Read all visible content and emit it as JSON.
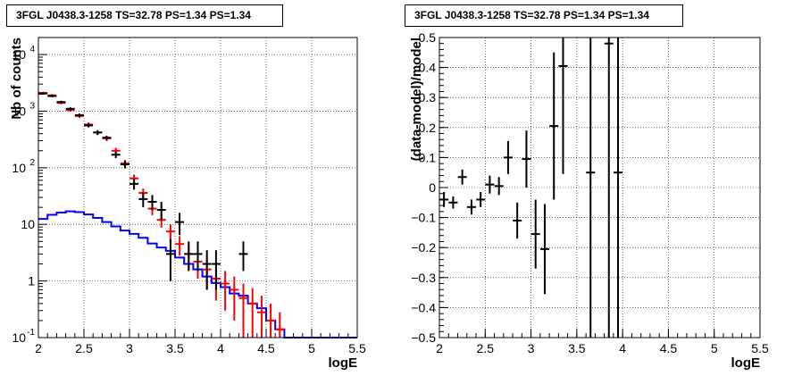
{
  "chart_data": [
    {
      "type": "line",
      "title": "3FGL J0438.3-1258 TS=32.78 PS=1.34 PS=1.34",
      "xlabel": "logE",
      "ylabel": "Nb of counts",
      "xlim": [
        2,
        5.5
      ],
      "ylim": [
        0.1,
        20000
      ],
      "yscale": "log",
      "grid": true,
      "xticks": [
        "2",
        "2.5",
        "3",
        "3.5",
        "4",
        "4.5",
        "5",
        "5.5"
      ],
      "yticks": [
        {
          "v": 0.1,
          "label": "10",
          "exp": "-1"
        },
        {
          "v": 1,
          "label": "1",
          "exp": ""
        },
        {
          "v": 10,
          "label": "10",
          "exp": ""
        },
        {
          "v": 100,
          "label": "10",
          "exp": "2"
        },
        {
          "v": 1000,
          "label": "10",
          "exp": "3"
        },
        {
          "v": 10000,
          "label": "10",
          "exp": "4"
        }
      ],
      "series": [
        {
          "style": "step",
          "color": "#0000ff",
          "x": [
            2.0,
            2.1,
            2.2,
            2.3,
            2.4,
            2.5,
            2.6,
            2.7,
            2.8,
            2.9,
            3.0,
            3.1,
            3.2,
            3.3,
            3.4,
            3.5,
            3.6,
            3.7,
            3.8,
            3.9,
            4.0,
            4.1,
            4.2,
            4.3,
            4.4,
            4.5,
            4.6,
            4.7,
            4.8,
            4.9,
            5.0,
            5.1,
            5.2,
            5.3,
            5.4
          ],
          "values": [
            12.5,
            14.8,
            16.2,
            17.0,
            16.5,
            15.0,
            13.0,
            11.0,
            9.2,
            7.8,
            6.8,
            5.8,
            4.6,
            3.9,
            3.4,
            2.6,
            2.0,
            1.6,
            1.2,
            0.92,
            0.78,
            0.6,
            0.55,
            0.4,
            0.33,
            0.2,
            0.14,
            0.1,
            0.1,
            0.1,
            0.1,
            0.1,
            0.1,
            0.1,
            0.1
          ]
        },
        {
          "style": "errorbar",
          "color": "#ff0000",
          "x": [
            2.05,
            2.15,
            2.25,
            2.35,
            2.45,
            2.55,
            2.65,
            2.75,
            2.85,
            2.95,
            3.05,
            3.15,
            3.25,
            3.35,
            3.45,
            3.55,
            3.65,
            3.75,
            3.85,
            3.95,
            4.05,
            4.15,
            4.25,
            4.35,
            4.45,
            4.55,
            4.65
          ],
          "values": [
            2100,
            1900,
            1400,
            1050,
            820,
            580,
            420,
            330,
            200,
            120,
            65,
            36,
            19,
            12,
            7.5,
            4.5,
            3.0,
            2.2,
            1.6,
            1.1,
            0.9,
            0.7,
            0.5,
            0.4,
            0.28,
            0.2,
            0.14
          ],
          "err_low": [
            2000,
            1800,
            1320,
            980,
            760,
            530,
            380,
            295,
            175,
            103,
            54,
            29,
            14.5,
            8.8,
            5.1,
            2.8,
            1.6,
            1.1,
            0.7,
            0.45,
            0.3,
            0.2,
            0.1,
            0.1,
            0.1,
            0.1,
            0.1
          ],
          "err_high": [
            2200,
            2000,
            1480,
            1120,
            880,
            630,
            460,
            365,
            225,
            137,
            76,
            43,
            23.5,
            15.2,
            9.9,
            6.2,
            4.4,
            3.3,
            2.5,
            1.75,
            1.5,
            1.2,
            0.9,
            0.75,
            0.55,
            0.4,
            0.28
          ]
        },
        {
          "style": "errorbar",
          "color": "#000000",
          "x": [
            2.05,
            2.15,
            2.25,
            2.35,
            2.45,
            2.55,
            2.65,
            2.75,
            2.85,
            2.95,
            3.05,
            3.15,
            3.25,
            3.35,
            3.45,
            3.55,
            3.65,
            3.75,
            3.85,
            3.95,
            4.25
          ],
          "values": [
            2050,
            1850,
            1450,
            1100,
            850,
            560,
            420,
            340,
            170,
            115,
            52,
            28,
            25,
            18,
            3.0,
            11,
            3.0,
            3.0,
            2.0,
            2.0,
            3.0
          ],
          "err_low": [
            1950,
            1760,
            1370,
            1030,
            790,
            515,
            380,
            310,
            148,
            97,
            41,
            20,
            18,
            12,
            1.0,
            6.5,
            1.5,
            1.5,
            0.7,
            0.7,
            1.5
          ],
          "err_high": [
            2150,
            1940,
            1530,
            1170,
            910,
            605,
            460,
            370,
            195,
            133,
            64,
            36,
            33,
            25,
            5.5,
            16,
            5.0,
            5.0,
            3.5,
            3.5,
            5.0
          ]
        }
      ]
    },
    {
      "type": "scatter",
      "title": "3FGL J0438.3-1258 TS=32.78 PS=1.34 PS=1.34",
      "xlabel": "logE",
      "ylabel": "(data-model)/model",
      "xlim": [
        2,
        5.5
      ],
      "ylim": [
        -0.5,
        0.5
      ],
      "grid": true,
      "xticks": [
        "2",
        "2.5",
        "3",
        "3.5",
        "4",
        "4.5",
        "5",
        "5.5"
      ],
      "yticks": [
        "−0.5",
        "−0.4",
        "−0.3",
        "−0.2",
        "−0.1",
        "0",
        "0.1",
        "0.2",
        "0.3",
        "0.4",
        "0.5"
      ],
      "series": [
        {
          "style": "errorbar",
          "color": "#000000",
          "x": [
            2.05,
            2.15,
            2.25,
            2.35,
            2.45,
            2.55,
            2.65,
            2.75,
            2.85,
            2.95,
            3.05,
            3.15,
            3.25,
            3.35,
            3.65,
            3.85,
            3.95
          ],
          "values": [
            -0.04,
            -0.05,
            0.035,
            -0.065,
            -0.04,
            0.01,
            0.005,
            0.1,
            -0.11,
            0.095,
            -0.155,
            -0.205,
            0.205,
            0.405,
            0.05,
            0.48,
            0.05
          ],
          "err_low": [
            -0.065,
            -0.07,
            0.01,
            -0.09,
            -0.065,
            -0.02,
            -0.025,
            0.045,
            -0.17,
            0.0,
            -0.27,
            -0.355,
            -0.04,
            0.045,
            -0.5,
            -0.5,
            -0.5
          ],
          "err_high": [
            -0.015,
            -0.03,
            0.06,
            -0.04,
            -0.015,
            0.04,
            0.035,
            0.155,
            -0.05,
            0.19,
            -0.04,
            -0.055,
            0.45,
            0.5,
            0.5,
            0.5,
            0.5
          ]
        }
      ]
    }
  ]
}
